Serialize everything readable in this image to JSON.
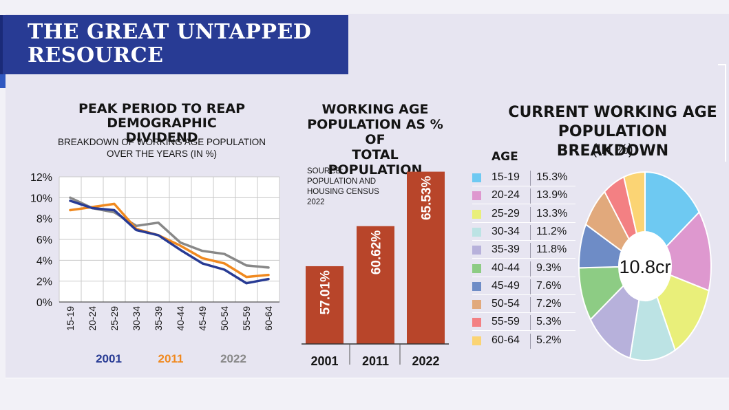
{
  "title": {
    "line1": "THE GREAT UNTAPPED",
    "line2": "RESOURCE"
  },
  "chart_data": [
    {
      "type": "line",
      "title_lines": [
        "PEAK PERIOD TO REAP DEMOGRAPHIC",
        "DIVIDEND"
      ],
      "subtitle_lines": [
        "BREAKDOWN OF WORKING AGE POPULATION",
        "OVER THE YEARS (IN %)"
      ],
      "categories": [
        "15-19",
        "20-24",
        "25-29",
        "30-34",
        "35-39",
        "40-44",
        "45-49",
        "50-54",
        "55-59",
        "60-64"
      ],
      "yticks": [
        "0%",
        "2%",
        "4%",
        "6%",
        "8%",
        "10%",
        "12%"
      ],
      "ylim": [
        0,
        12
      ],
      "grid": true,
      "legend_position": "bottom",
      "series": [
        {
          "name": "2001",
          "color": "#283b94",
          "values": [
            9.7,
            9.0,
            8.8,
            6.9,
            6.4,
            5.0,
            3.7,
            3.1,
            1.8,
            2.2
          ]
        },
        {
          "name": "2011",
          "color": "#f0891f",
          "values": [
            8.8,
            9.1,
            9.4,
            7.0,
            6.4,
            5.4,
            4.2,
            3.7,
            2.4,
            2.6
          ]
        },
        {
          "name": "2022",
          "color": "#888888",
          "values": [
            10.0,
            9.0,
            8.6,
            7.3,
            7.6,
            5.7,
            4.9,
            4.6,
            3.5,
            3.3
          ]
        }
      ]
    },
    {
      "type": "bar",
      "title_lines": [
        "WORKING AGE",
        "POPULATION AS % OF",
        "TOTAL POPULATION"
      ],
      "source": "SOURCE:\nPOPULATION AND\nHOUSING CENSUS\n2022",
      "categories": [
        "2001",
        "2011",
        "2022"
      ],
      "values": [
        57.01,
        60.62,
        65.53
      ],
      "labels": [
        "57.01%",
        "60.62%",
        "65.53%"
      ],
      "ylim": [
        50,
        66
      ],
      "color": "#b8452a"
    },
    {
      "type": "pie",
      "title_lines": [
        "CURRENT WORKING AGE",
        "POPULATION BREAKDOWN"
      ],
      "subtitle": "(IN %)",
      "legend_title": "AGE",
      "center_label": "10.8cr",
      "slices": [
        {
          "label": "15-19",
          "value": 15.3,
          "value_label": "15.3%",
          "color": "#6ec9f2"
        },
        {
          "label": "20-24",
          "value": 13.9,
          "value_label": "13.9%",
          "color": "#de98cf"
        },
        {
          "label": "25-29",
          "value": 13.3,
          "value_label": "13.3%",
          "color": "#e9ef7a"
        },
        {
          "label": "30-34",
          "value": 11.2,
          "value_label": "11.2%",
          "color": "#bce3e4"
        },
        {
          "label": "35-39",
          "value": 11.8,
          "value_label": "11.8%",
          "color": "#b7b1db"
        },
        {
          "label": "40-44",
          "value": 9.3,
          "value_label": "9.3%",
          "color": "#8dcc84"
        },
        {
          "label": "45-49",
          "value": 7.6,
          "value_label": "7.6%",
          "color": "#6e8cc6"
        },
        {
          "label": "50-54",
          "value": 7.2,
          "value_label": "7.2%",
          "color": "#e1a97c"
        },
        {
          "label": "55-59",
          "value": 5.3,
          "value_label": "5.3%",
          "color": "#f38083"
        },
        {
          "label": "60-64",
          "value": 5.2,
          "value_label": "5.2%",
          "color": "#fbd474"
        }
      ]
    }
  ]
}
